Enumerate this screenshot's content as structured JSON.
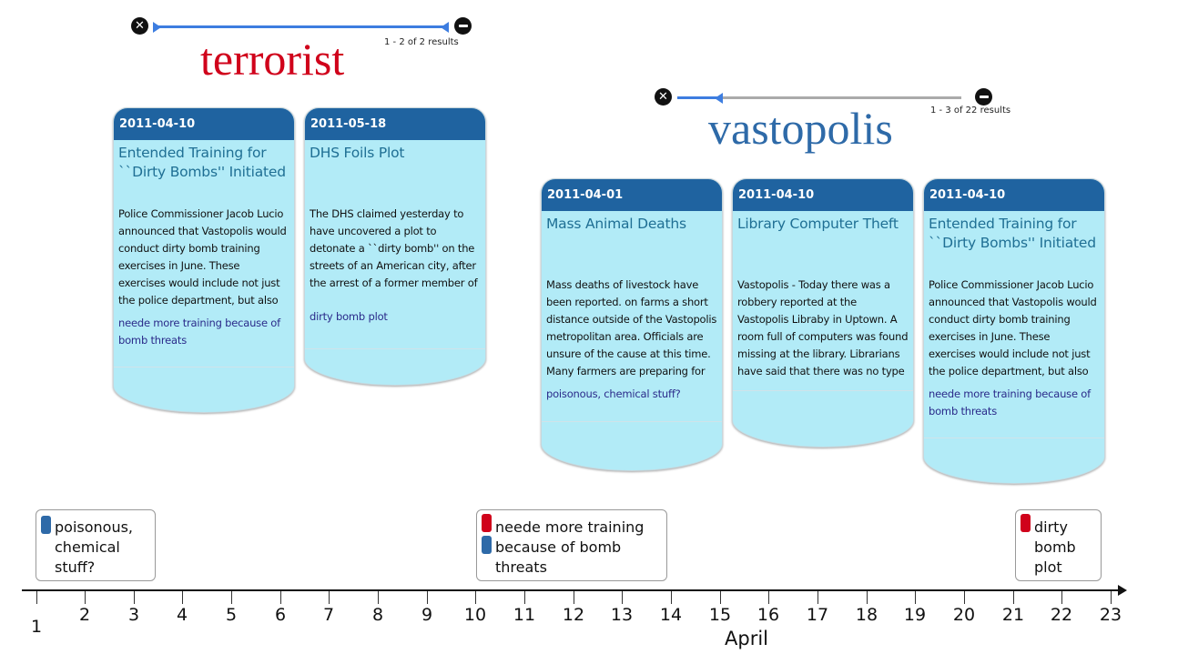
{
  "colors": {
    "terrorist": "#d0021b",
    "vastopolis": "#2e6aa8",
    "card_bg": "#b2ebf7",
    "card_head": "#1f63a0",
    "track_blue": "#3d7de0",
    "track_gray": "#aaaaaa"
  },
  "queries": [
    {
      "term": "terrorist",
      "result_count": "1 - 2 of 2 results",
      "close_icon": "close-circle-icon",
      "minimize_icon": "minus-circle-icon",
      "cards": [
        {
          "date": "2011-04-10",
          "title": "Entended Training for ``Dirty Bombs'' Initiated",
          "body": "Police Commissioner Jacob Lucio announced that Vastopolis would conduct dirty bomb training exercises in June. These exercises would include not just the police department, but also every",
          "note": "neede more training because of bomb threats"
        },
        {
          "date": "2011-05-18",
          "title": "DHS Foils Plot",
          "body": "The DHS claimed yesterday to have uncovered a plot to detonate a ``dirty bomb'' on the streets of an American city, after the arrest of a former member of the Network of Dread. DHS",
          "note": "dirty bomb plot"
        }
      ]
    },
    {
      "term": "vastopolis",
      "result_count": "1 - 3 of 22 results",
      "close_icon": "close-circle-icon",
      "minimize_icon": "minus-circle-icon",
      "cards": [
        {
          "date": "2011-04-01",
          "title": "Mass Animal Deaths",
          "body": "Mass deaths of livestock have been reported. on farms a short distance outside of the Vastopolis metropolitan area. Officials are unsure of the cause at this time. Many farmers are preparing for",
          "note": "poisonous, chemical stuff?"
        },
        {
          "date": "2011-04-10",
          "title": "Library Computer Theft",
          "body": "Vastopolis - Today there was a robbery reported at the Vastopolis Libraby in Uptown. A room full of computers was found missing at the library. Librarians have said that there was no type of",
          "note": ""
        },
        {
          "date": "2011-04-10",
          "title": "Entended Training for ``Dirty Bombs'' Initiated",
          "body": "Police Commissioner Jacob Lucio announced that Vastopolis would conduct dirty bomb training exercises in June. These exercises would include not just the police department, but also every",
          "note": "neede more training because of bomb threats"
        }
      ]
    }
  ],
  "annotations": [
    {
      "text": "poisonous, chemical stuff?",
      "markers": [
        "vastopolis"
      ]
    },
    {
      "text": "neede more training because of bomb threats",
      "markers": [
        "terrorist",
        "vastopolis"
      ]
    },
    {
      "text": "dirty bomb plot",
      "markers": [
        "terrorist"
      ]
    }
  ],
  "timeline": {
    "ticks": [
      "1",
      "2",
      "3",
      "4",
      "5",
      "6",
      "7",
      "8",
      "9",
      "10",
      "11",
      "12",
      "13",
      "14",
      "15",
      "16",
      "17",
      "18",
      "19",
      "20",
      "21",
      "22",
      "23"
    ],
    "month": "April"
  }
}
